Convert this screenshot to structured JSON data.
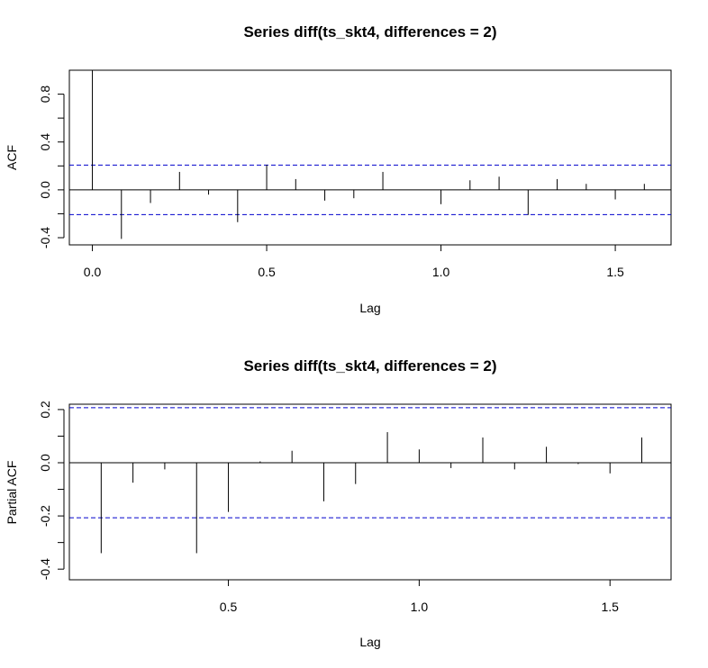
{
  "chart_data": [
    {
      "type": "bar",
      "subtype": "acf",
      "title": "Series  diff(ts_skt4, differences = 2)",
      "xlabel": "Lag",
      "ylabel": "ACF",
      "xlim": [
        -0.066,
        1.66
      ],
      "ylim": [
        -0.46,
        1.0
      ],
      "xticks": [
        0,
        0.5,
        1,
        1.5
      ],
      "xtick_labels": [
        "0.0",
        "0.5",
        "1.0",
        "1.5"
      ],
      "yticks": [
        -0.4,
        -0.2,
        0,
        0.2,
        0.4,
        0.6,
        0.8
      ],
      "ytick_labels": [
        "-0.4",
        "",
        "0.0",
        "",
        "0.4",
        "",
        "0.8"
      ],
      "ci": 0.207,
      "x": [
        0,
        0.0833,
        0.1667,
        0.25,
        0.3333,
        0.4167,
        0.5,
        0.5833,
        0.6667,
        0.75,
        0.8333,
        0.9167,
        1.0,
        1.0833,
        1.1667,
        1.25,
        1.3333,
        1.4167,
        1.5,
        1.5833
      ],
      "values": [
        1.0,
        -0.41,
        -0.11,
        0.15,
        -0.04,
        -0.27,
        0.21,
        0.09,
        -0.09,
        -0.07,
        0.15,
        0.0,
        -0.12,
        0.08,
        0.11,
        -0.21,
        0.09,
        0.05,
        -0.08,
        0.05
      ],
      "grid": false,
      "colors": {
        "bars": "#000000",
        "ci_line": "#0000cc"
      }
    },
    {
      "type": "bar",
      "subtype": "pacf",
      "title": "Series  diff(ts_skt4, differences = 2)",
      "xlabel": "Lag",
      "ylabel": "Partial ACF",
      "xlim": [
        0.0833,
        1.66
      ],
      "ylim": [
        -0.44,
        0.22
      ],
      "xticks": [
        0.5,
        1,
        1.5
      ],
      "xtick_labels": [
        "0.5",
        "1.0",
        "1.5"
      ],
      "yticks": [
        -0.4,
        -0.3,
        -0.2,
        -0.1,
        0,
        0.1,
        0.2
      ],
      "ytick_labels": [
        "-0.4",
        "",
        "-0.2",
        "",
        "0.0",
        "",
        "0.2"
      ],
      "ci": 0.207,
      "x": [
        0.0833,
        0.1667,
        0.25,
        0.3333,
        0.4167,
        0.5,
        0.5833,
        0.6667,
        0.75,
        0.8333,
        0.9167,
        1.0,
        1.0833,
        1.1667,
        1.25,
        1.3333,
        1.4167,
        1.5,
        1.5833
      ],
      "values": [
        -0.41,
        -0.34,
        -0.075,
        -0.025,
        -0.34,
        -0.185,
        0.005,
        0.045,
        -0.145,
        -0.08,
        0.115,
        0.05,
        -0.02,
        0.095,
        -0.025,
        0.06,
        -0.005,
        -0.04,
        0.095
      ],
      "grid": false,
      "colors": {
        "bars": "#000000",
        "ci_line": "#0000cc"
      }
    }
  ]
}
